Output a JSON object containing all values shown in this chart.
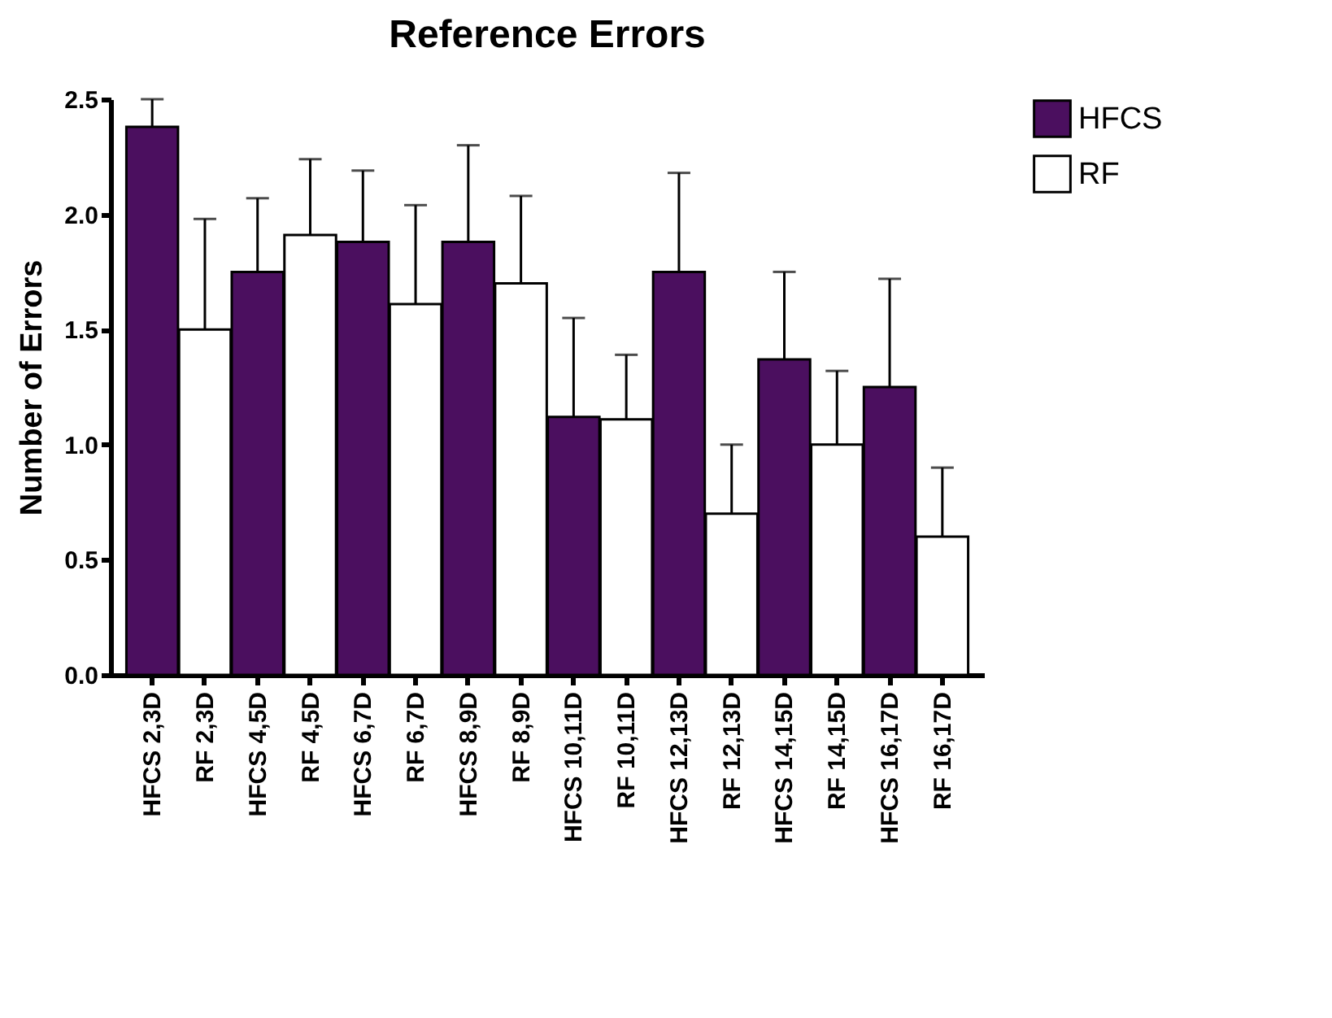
{
  "chart_data": {
    "type": "bar",
    "title": "Reference Errors",
    "ylabel": "Number of Errors",
    "categories": [
      "HFCS 2,3D",
      "RF 2,3D",
      "HFCS 4,5D",
      "RF 4,5D",
      "HFCS 6,7D",
      "RF 6,7D",
      "HFCS 8,9D",
      "RF 8,9D",
      "HFCS 10,11D",
      "RF 10,11D",
      "HFCS 12,13D",
      "RF 12,13D",
      "HFCS 14,15D",
      "RF 14,15D",
      "HFCS 16,17D",
      "RF 16,17D"
    ],
    "series": [
      {
        "name": "HFCS",
        "color": "#4b0f5f",
        "values": [
          2.38,
          null,
          1.75,
          null,
          1.88,
          null,
          1.88,
          null,
          1.12,
          null,
          1.75,
          null,
          1.37,
          null,
          1.25,
          null
        ],
        "errors": [
          [
            2.38,
            2.5
          ],
          null,
          [
            1.75,
            2.07
          ],
          null,
          [
            1.88,
            2.19
          ],
          null,
          [
            1.88,
            2.3
          ],
          null,
          [
            1.12,
            1.55
          ],
          null,
          [
            1.75,
            2.18
          ],
          null,
          [
            1.37,
            1.75
          ],
          null,
          [
            1.25,
            1.72
          ],
          null
        ]
      },
      {
        "name": "RF",
        "color": "#ffffff",
        "values": [
          null,
          1.5,
          null,
          1.91,
          null,
          1.61,
          null,
          1.7,
          null,
          1.11,
          null,
          0.7,
          null,
          1.0,
          null,
          0.6
        ],
        "errors": [
          null,
          [
            1.5,
            1.98
          ],
          null,
          [
            1.91,
            2.24
          ],
          null,
          [
            1.61,
            2.04
          ],
          null,
          [
            1.7,
            2.08
          ],
          null,
          [
            1.11,
            1.39
          ],
          null,
          [
            0.7,
            1.0
          ],
          null,
          [
            1.0,
            1.32
          ],
          null,
          [
            0.6,
            0.9
          ]
        ]
      }
    ],
    "ylim": [
      0,
      2.5
    ],
    "yticks": [
      {
        "value": 0,
        "label": "0.0"
      },
      {
        "value": 0.5,
        "label": "0.5"
      },
      {
        "value": 1,
        "label": "1.0"
      },
      {
        "value": 1.5,
        "label": "1.5"
      },
      {
        "value": 2,
        "label": "2.0"
      },
      {
        "value": 2.5,
        "label": "2.5"
      }
    ],
    "grid": false,
    "legend": "top right"
  }
}
